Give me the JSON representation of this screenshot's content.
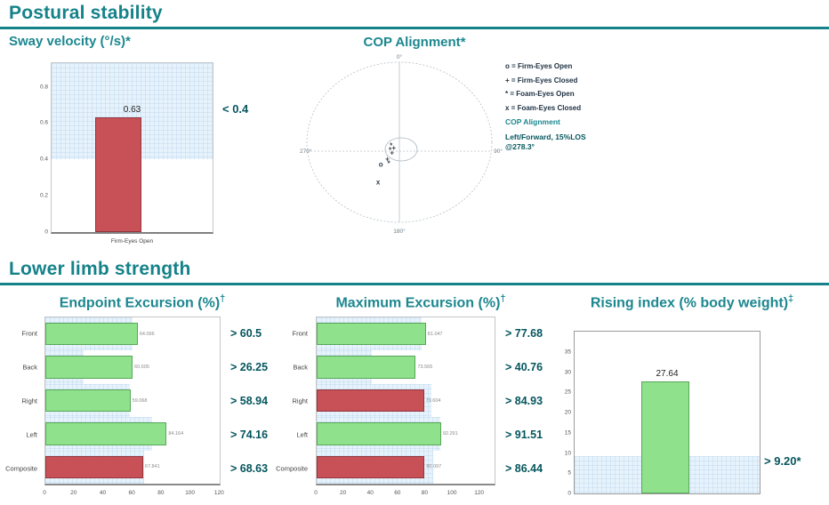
{
  "page": {
    "section1": "Postural stability",
    "section2": "Lower limb strength"
  },
  "theme": {
    "teal_header": "#15828a",
    "dark_teal_threshold": "#05565e",
    "green_bar": "#8fe18c",
    "red_bar": "#c75157",
    "band_blue": "#e7f3fc"
  },
  "chart_data": [
    {
      "id": "sway_velocity",
      "type": "bar",
      "orientation": "vertical",
      "title": "Sway velocity (°/s)*",
      "categories": [
        "Firm-Eyes Open"
      ],
      "values": [
        0.63
      ],
      "bar_labels": [
        "0.63"
      ],
      "bar_colors": [
        "red"
      ],
      "ylim": [
        0,
        0.93
      ],
      "yticks": [
        "0",
        "0.2",
        "0.4",
        "0.6",
        "0.8"
      ],
      "threshold": 0.4,
      "threshold_label": "< 0.4",
      "shaded_region": "above_threshold",
      "grid": "faint blue grid inside shaded band"
    },
    {
      "id": "cop_alignment",
      "type": "scatter",
      "subtype": "polar",
      "title": "COP Alignment*",
      "degree_labels": {
        "top": "0°",
        "right": "90°",
        "bottom": "180°",
        "left": "270°"
      },
      "legend": [
        {
          "marker": "o",
          "text": "o =  Firm-Eyes Open"
        },
        {
          "marker": "+",
          "text": "+ =  Firm-Eyes Closed"
        },
        {
          "marker": "*",
          "text": "* =  Foam-Eyes Open"
        },
        {
          "marker": "x",
          "text": "x =  Foam-Eyes Closed"
        }
      ],
      "annotation_title": "COP Alignment",
      "annotation_line1": "Left/Forward, 15%LOS",
      "annotation_line2": "@278.3°",
      "points": [
        {
          "marker": "*",
          "dx": -0.09,
          "dy": -0.07
        },
        {
          "marker": "+",
          "dx": -0.06,
          "dy": -0.04
        },
        {
          "marker": "*",
          "dx": -0.1,
          "dy": -0.01
        },
        {
          "marker": "+",
          "dx": -0.08,
          "dy": 0.02
        },
        {
          "marker": "*",
          "dx": -0.115,
          "dy": 0.155
        },
        {
          "marker": "+",
          "dx": -0.13,
          "dy": 0.1
        },
        {
          "marker": "o",
          "dx": -0.2,
          "dy": 0.167
        },
        {
          "marker": "x",
          "dx": -0.23,
          "dy": 0.39
        }
      ]
    },
    {
      "id": "endpoint_excursion",
      "type": "bar",
      "orientation": "horizontal",
      "title": "Endpoint Excursion (%)",
      "title_sup": "†",
      "categories": [
        "Front",
        "Back",
        "Right",
        "Left",
        "Composite"
      ],
      "values": [
        64.096,
        60.605,
        59.068,
        84.164,
        67.841
      ],
      "bar_labels": [
        "64.096",
        "60.605",
        "59.068",
        "84.164",
        "67.841"
      ],
      "bar_colors": [
        "green",
        "green",
        "green",
        "green",
        "red"
      ],
      "thresholds": [
        60.5,
        26.25,
        58.94,
        74.16,
        68.63
      ],
      "threshold_labels": [
        "> 60.5",
        "> 26.25",
        "> 58.94",
        "> 74.16",
        "> 68.63"
      ],
      "xlim": [
        0,
        121
      ],
      "xticks": [
        "0",
        "20",
        "40",
        "60",
        "80",
        "100",
        "120"
      ]
    },
    {
      "id": "maximum_excursion",
      "type": "bar",
      "orientation": "horizontal",
      "title": "Maximum Excursion (%)",
      "title_sup": "†",
      "categories": [
        "Front",
        "Back",
        "Right",
        "Left",
        "Composite"
      ],
      "values": [
        81.047,
        73.565,
        79.604,
        92.291,
        80.097
      ],
      "bar_labels": [
        "81.047",
        "73.565",
        "79.604",
        "92.291",
        "80.097"
      ],
      "bar_colors": [
        "green",
        "green",
        "red",
        "green",
        "red"
      ],
      "thresholds": [
        77.68,
        40.76,
        84.93,
        91.51,
        86.44
      ],
      "threshold_labels": [
        "> 77.68",
        "> 40.76",
        "> 84.93",
        "> 91.51",
        "> 86.44"
      ],
      "xlim": [
        0,
        132
      ],
      "xticks": [
        "0",
        "20",
        "40",
        "60",
        "80",
        "100",
        "120"
      ]
    },
    {
      "id": "rising_index",
      "type": "bar",
      "orientation": "vertical",
      "title": "Rising index (% body weight)",
      "title_sup": "‡",
      "categories": [
        ""
      ],
      "values": [
        27.64
      ],
      "bar_labels": [
        "27.64"
      ],
      "bar_colors": [
        "green"
      ],
      "ylim": [
        0,
        40
      ],
      "yticks": [
        "0",
        "5",
        "10",
        "15",
        "20",
        "25",
        "30",
        "35"
      ],
      "threshold": 9.2,
      "threshold_label": "> 9.20*",
      "shaded_region": "below_threshold"
    }
  ]
}
